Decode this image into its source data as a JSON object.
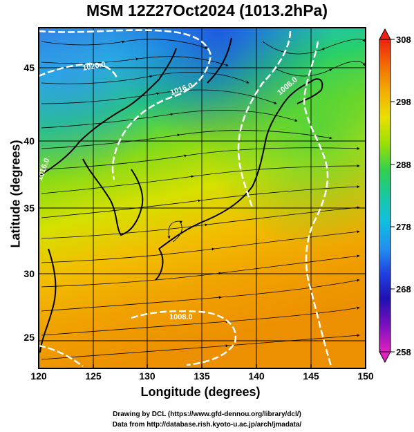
{
  "title": "MSM 12Z27Oct2024 (1013.2hPa)",
  "x_axis": {
    "label": "Longitude (degrees)",
    "ticks": [
      "120",
      "125",
      "130",
      "135",
      "140",
      "145",
      "150"
    ]
  },
  "y_axis": {
    "label": "Latitude  (degrees)",
    "ticks": [
      "25",
      "30",
      "35",
      "40",
      "45"
    ]
  },
  "colorbar": {
    "ticks": [
      "308",
      "298",
      "288",
      "278",
      "268",
      "258"
    ]
  },
  "contour_labels": [
    "1020.0",
    "1016.0",
    "1008.0",
    "1016.0",
    "1008.0"
  ],
  "footer": {
    "line1": "Drawing by DCL (https://www.gfd-dennou.org/library/dcl/)",
    "line2": "Data from http://database.rish.kyoto-u.ac.jp/arch/jmadata/"
  },
  "chart_data": {
    "type": "heatmap",
    "title": "MSM 12Z27Oct2024 (1013.2hPa)",
    "xlabel": "Longitude (degrees)",
    "ylabel": "Latitude  (degrees)",
    "xlim": [
      120,
      150
    ],
    "ylim": [
      22.4,
      47.6
    ],
    "x_ticks": [
      120,
      125,
      130,
      135,
      140,
      145,
      150
    ],
    "y_ticks": [
      25,
      30,
      35,
      40,
      45
    ],
    "colorbar_range": [
      258,
      308
    ],
    "colorbar_ticks": [
      308,
      298,
      288,
      278,
      268,
      258
    ],
    "grid": true
  }
}
